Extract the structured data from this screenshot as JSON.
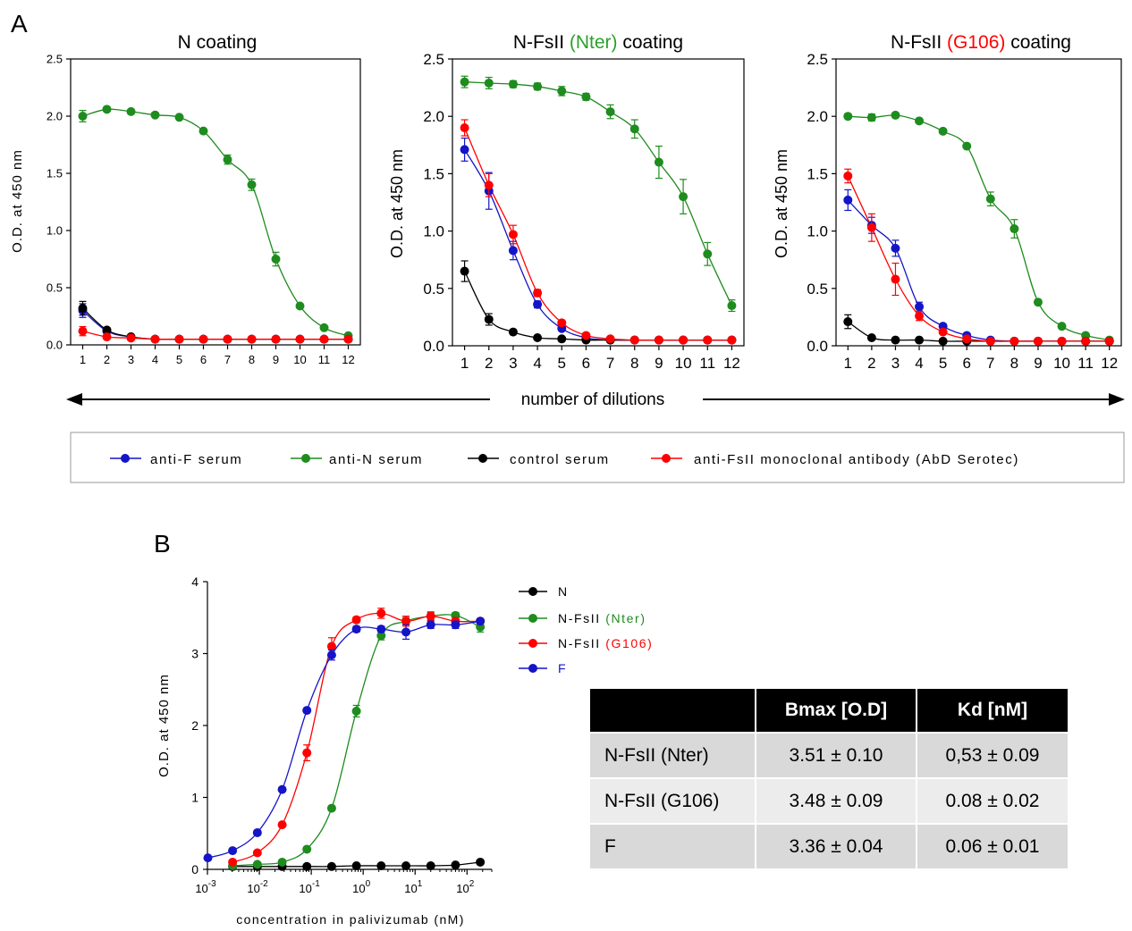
{
  "panel_labels": {
    "a": "A",
    "b": "B"
  },
  "panel_a": {
    "titles": [
      {
        "pre": "N coating",
        "colored": "",
        "post": "",
        "color": "#000000"
      },
      {
        "pre": "N-FsII ",
        "colored": "(Nter)",
        "post": " coating",
        "color": "#2ca02c"
      },
      {
        "pre": "N-FsII ",
        "colored": "(G106)",
        "post": " coating",
        "color": "#ff0000"
      }
    ],
    "ylabel": "O.D. at 450 nm",
    "xlabel": "number of dilutions",
    "legend": [
      {
        "label": "anti-F serum",
        "color": "#1414c8"
      },
      {
        "label": "anti-N serum",
        "color": "#1e8c1e"
      },
      {
        "label": "control serum",
        "color": "#000000"
      },
      {
        "label": "anti-FsII monoclonal antibody (AbD Serotec)",
        "color": "#ff0000"
      }
    ]
  },
  "panel_b": {
    "ylabel": "O.D. at 450 nm",
    "xlabel": "concentration in palivizumab (nM)",
    "legend": [
      {
        "pre": "N",
        "colored": "",
        "post": "",
        "color": "#000000",
        "text_color": "#000000"
      },
      {
        "pre": "N-FsII ",
        "colored": "(Nter)",
        "post": "",
        "color": "#1e8c1e",
        "text_color": "#1e8c1e"
      },
      {
        "pre": "N-FsII ",
        "colored": "(G106)",
        "post": "",
        "color": "#ff0000",
        "text_color": "#ff0000"
      },
      {
        "pre": "",
        "colored": "F",
        "post": "",
        "color": "#1414c8",
        "text_color": "#1414c8"
      }
    ]
  },
  "table": {
    "headers": [
      "",
      "Bmax [O.D]",
      "Kd  [nM]"
    ],
    "rows": [
      [
        "N-FsII (Nter)",
        "3.51 ± 0.10",
        "0,53 ± 0.09"
      ],
      [
        "N-FsII (G106)",
        "3.48 ± 0.09",
        "0.08 ± 0.02"
      ],
      [
        "F",
        "3.36 ± 0.04",
        "0.06 ± 0.01"
      ]
    ]
  },
  "chart_data": [
    {
      "type": "scatter",
      "title": "N coating",
      "xlabel": "",
      "ylabel": "O.D. at 450 nm",
      "x": [
        1,
        2,
        3,
        4,
        5,
        6,
        7,
        8,
        9,
        10,
        11,
        12
      ],
      "xlim": [
        0.5,
        12.5
      ],
      "ylim": [
        0,
        2.5
      ],
      "yticks": [
        0,
        0.5,
        1.0,
        1.5,
        2.0,
        2.5
      ],
      "series": [
        {
          "name": "anti-F serum",
          "color": "#1414c8",
          "values": [
            0.3,
            0.12,
            0.07,
            0.05,
            0.05,
            0.05,
            0.05,
            0.05,
            0.05,
            0.05,
            0.05,
            0.05
          ],
          "errors": [
            0.06,
            0.02,
            0.01,
            0,
            0,
            0,
            0,
            0,
            0,
            0,
            0,
            0
          ]
        },
        {
          "name": "anti-N serum",
          "color": "#1e8c1e",
          "values": [
            2.0,
            2.06,
            2.04,
            2.01,
            1.99,
            1.87,
            1.62,
            1.4,
            0.75,
            0.34,
            0.15,
            0.08
          ],
          "errors": [
            0.05,
            0.01,
            0.01,
            0.01,
            0.01,
            0.01,
            0.04,
            0.05,
            0.06,
            0.01,
            0.01,
            0.01
          ]
        },
        {
          "name": "control serum",
          "color": "#000000",
          "values": [
            0.32,
            0.13,
            0.07,
            0.05,
            0.05,
            0.05,
            0.05,
            0.05,
            0.05,
            0.05,
            0.05,
            0.05
          ],
          "errors": [
            0.06,
            0.02,
            0.01,
            0,
            0,
            0,
            0,
            0,
            0,
            0,
            0,
            0
          ]
        },
        {
          "name": "anti-FsII monoclonal antibody (AbD Serotec)",
          "color": "#ff0000",
          "values": [
            0.12,
            0.07,
            0.06,
            0.05,
            0.05,
            0.05,
            0.05,
            0.05,
            0.05,
            0.05,
            0.05,
            0.05
          ],
          "errors": [
            0.04,
            0.01,
            0.01,
            0,
            0,
            0,
            0,
            0,
            0,
            0,
            0,
            0
          ]
        }
      ]
    },
    {
      "type": "scatter",
      "title": "N-FsII (Nter) coating",
      "xlabel": "",
      "ylabel": "O.D. at 450 nm",
      "x": [
        1,
        2,
        3,
        4,
        5,
        6,
        7,
        8,
        9,
        10,
        11,
        12
      ],
      "xlim": [
        0.5,
        12.5
      ],
      "ylim": [
        0,
        2.5
      ],
      "yticks": [
        0,
        0.5,
        1.0,
        1.5,
        2.0,
        2.5
      ],
      "series": [
        {
          "name": "anti-F serum",
          "color": "#1414c8",
          "values": [
            1.71,
            1.35,
            0.83,
            0.36,
            0.15,
            0.07,
            0.05,
            0.05,
            0.05,
            0.05,
            0.05,
            0.05
          ],
          "errors": [
            0.1,
            0.16,
            0.08,
            0.03,
            0.01,
            0,
            0,
            0,
            0,
            0,
            0,
            0
          ]
        },
        {
          "name": "anti-N serum",
          "color": "#1e8c1e",
          "values": [
            2.3,
            2.29,
            2.28,
            2.26,
            2.22,
            2.17,
            2.04,
            1.89,
            1.6,
            1.3,
            0.8,
            0.35
          ],
          "errors": [
            0.05,
            0.05,
            0.03,
            0.03,
            0.04,
            0.03,
            0.06,
            0.08,
            0.14,
            0.15,
            0.1,
            0.05
          ]
        },
        {
          "name": "control serum",
          "color": "#000000",
          "values": [
            0.65,
            0.23,
            0.12,
            0.07,
            0.06,
            0.05,
            0.05,
            0.05,
            0.05,
            0.05,
            0.05,
            0.05
          ],
          "errors": [
            0.09,
            0.05,
            0.01,
            0,
            0,
            0,
            0,
            0,
            0,
            0,
            0,
            0
          ]
        },
        {
          "name": "anti-FsII monoclonal antibody (AbD Serotec)",
          "color": "#ff0000",
          "values": [
            1.9,
            1.4,
            0.97,
            0.46,
            0.2,
            0.09,
            0.06,
            0.05,
            0.05,
            0.05,
            0.05,
            0.05
          ],
          "errors": [
            0.07,
            0.1,
            0.08,
            0.03,
            0.02,
            0.01,
            0,
            0,
            0,
            0,
            0,
            0
          ]
        }
      ]
    },
    {
      "type": "scatter",
      "title": "N-FsII (G106) coating",
      "xlabel": "",
      "ylabel": "O.D. at 450 nm",
      "x": [
        1,
        2,
        3,
        4,
        5,
        6,
        7,
        8,
        9,
        10,
        11,
        12
      ],
      "xlim": [
        0.5,
        12.5
      ],
      "ylim": [
        0,
        2.5
      ],
      "yticks": [
        0,
        0.5,
        1.0,
        1.5,
        2.0,
        2.5
      ],
      "series": [
        {
          "name": "anti-F serum",
          "color": "#1414c8",
          "values": [
            1.27,
            1.05,
            0.85,
            0.34,
            0.17,
            0.09,
            0.05,
            0.04,
            0.04,
            0.04,
            0.04,
            0.04
          ],
          "errors": [
            0.09,
            0.07,
            0.07,
            0.04,
            0.02,
            0.01,
            0,
            0,
            0,
            0,
            0,
            0
          ]
        },
        {
          "name": "anti-N serum",
          "color": "#1e8c1e",
          "values": [
            2.0,
            1.99,
            2.01,
            1.96,
            1.87,
            1.74,
            1.28,
            1.02,
            0.38,
            0.17,
            0.09,
            0.05
          ],
          "errors": [
            0.02,
            0.03,
            0.02,
            0.01,
            0.02,
            0.01,
            0.06,
            0.08,
            0.02,
            0.01,
            0.01,
            0.01
          ]
        },
        {
          "name": "control serum",
          "color": "#000000",
          "values": [
            0.21,
            0.07,
            0.05,
            0.05,
            0.04,
            0.04,
            0.04,
            0.04,
            0.04,
            0.04,
            0.04,
            0.04
          ],
          "errors": [
            0.06,
            0.01,
            0,
            0,
            0,
            0,
            0,
            0,
            0,
            0,
            0,
            0
          ]
        },
        {
          "name": "anti-FsII monoclonal antibody (AbD Serotec)",
          "color": "#ff0000",
          "values": [
            1.48,
            1.03,
            0.58,
            0.26,
            0.12,
            0.06,
            0.04,
            0.04,
            0.04,
            0.04,
            0.04,
            0.04
          ],
          "errors": [
            0.06,
            0.12,
            0.14,
            0.04,
            0.01,
            0,
            0,
            0,
            0,
            0,
            0,
            0
          ]
        }
      ]
    },
    {
      "type": "scatter",
      "title": "",
      "xlabel": "concentration in palivizumab (nM)",
      "ylabel": "O.D. at 450 nm",
      "x_scale": "log",
      "xlim": [
        0.001,
        300
      ],
      "ylim": [
        0,
        4
      ],
      "yticks": [
        0,
        1,
        2,
        3,
        4
      ],
      "xticks": [
        0.001,
        0.01,
        0.1,
        1,
        10,
        100
      ],
      "series": [
        {
          "name": "N",
          "color": "#000000",
          "x": [
            0.00305,
            0.00915,
            0.0275,
            0.0823,
            0.247,
            0.741,
            2.22,
            6.67,
            20,
            60,
            180
          ],
          "values": [
            0.04,
            0.04,
            0.04,
            0.04,
            0.04,
            0.05,
            0.05,
            0.05,
            0.05,
            0.06,
            0.1
          ],
          "errors": [
            0,
            0,
            0,
            0,
            0,
            0,
            0,
            0,
            0,
            0,
            0
          ]
        },
        {
          "name": "N-FsII (Nter)",
          "color": "#1e8c1e",
          "x": [
            0.00305,
            0.00915,
            0.0275,
            0.0823,
            0.247,
            0.741,
            2.22,
            6.67,
            20,
            60,
            180
          ],
          "values": [
            0.05,
            0.07,
            0.1,
            0.28,
            0.85,
            2.2,
            3.25,
            3.45,
            3.52,
            3.53,
            3.37
          ],
          "errors": [
            0,
            0,
            0,
            0.02,
            0.03,
            0.08,
            0.06,
            0.05,
            0.05,
            0.04,
            0.07
          ]
        },
        {
          "name": "N-FsII (G106)",
          "color": "#ff0000",
          "x": [
            0.00305,
            0.00915,
            0.0275,
            0.0823,
            0.247,
            0.741,
            2.22,
            6.67,
            20,
            60,
            180
          ],
          "values": [
            0.1,
            0.23,
            0.62,
            1.62,
            3.1,
            3.47,
            3.56,
            3.45,
            3.52,
            3.45,
            3.45
          ],
          "errors": [
            0,
            0.01,
            0.02,
            0.11,
            0.12,
            0.04,
            0.07,
            0.07,
            0.06,
            0.05,
            0.04
          ]
        },
        {
          "name": "F",
          "color": "#1414c8",
          "x": [
            0.00102,
            0.00305,
            0.00915,
            0.0275,
            0.0823,
            0.247,
            0.741,
            2.22,
            6.67,
            20,
            60,
            180
          ],
          "values": [
            0.16,
            0.26,
            0.51,
            1.11,
            2.21,
            2.98,
            3.34,
            3.34,
            3.3,
            3.4,
            3.4,
            3.45
          ],
          "errors": [
            0,
            0,
            0,
            0,
            0.03,
            0.07,
            0.04,
            0.04,
            0.1,
            0.05,
            0.05,
            0.03
          ]
        }
      ]
    }
  ]
}
